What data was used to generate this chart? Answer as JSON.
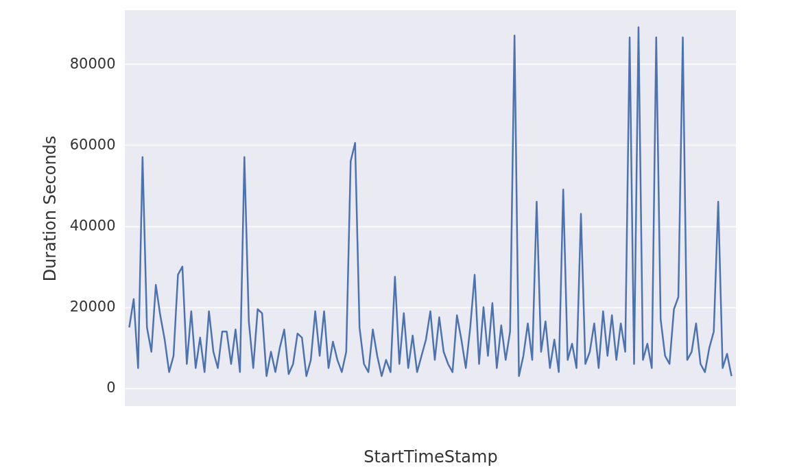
{
  "chart_data": {
    "type": "line",
    "xlabel": "StartTimeStamp",
    "ylabel": "Duration Seconds",
    "categories": [
      null,
      null,
      null,
      null,
      null,
      null,
      null,
      null,
      null,
      null,
      null,
      null,
      null,
      null,
      null,
      null,
      null,
      null,
      null,
      null,
      null,
      null,
      null,
      null,
      null,
      null,
      null,
      null,
      null,
      null,
      null,
      null,
      null,
      null,
      null,
      null,
      null,
      null,
      null,
      null,
      null,
      null,
      null,
      null,
      null,
      null,
      null,
      null,
      null,
      null,
      null,
      null,
      null,
      null,
      null,
      null,
      null,
      null,
      null,
      null,
      null,
      null,
      null,
      null,
      null,
      null,
      null,
      null,
      null,
      null,
      null,
      null,
      null,
      null,
      null,
      null,
      null,
      null,
      null,
      null,
      null,
      null,
      null,
      null,
      null,
      null,
      null,
      null,
      null,
      null,
      null,
      null,
      null,
      null,
      null,
      null,
      null,
      null,
      null,
      null,
      null,
      null,
      null,
      null,
      null,
      null,
      null,
      null,
      null,
      null,
      null,
      null,
      null,
      null,
      null,
      null,
      null,
      null,
      null,
      null,
      null,
      null,
      null,
      null,
      null,
      null,
      null,
      null,
      null,
      null,
      null,
      null,
      null,
      null,
      null,
      null,
      null
    ],
    "series": [
      {
        "color": "#4c72b0",
        "values": [
          15000,
          22000,
          5000,
          57000,
          15000,
          9000,
          25500,
          18000,
          12000,
          4000,
          8000,
          28000,
          30000,
          6000,
          19000,
          5000,
          12500,
          4000,
          19000,
          9000,
          5000,
          14000,
          14000,
          6000,
          14500,
          4000,
          57000,
          16500,
          5000,
          19500,
          18500,
          3000,
          9000,
          4000,
          10000,
          14500,
          3500,
          6000,
          13500,
          12500,
          3000,
          7000,
          19000,
          8000,
          19000,
          5000,
          11500,
          7000,
          4000,
          9000,
          56000,
          60500,
          15000,
          6000,
          4000,
          14500,
          8000,
          3000,
          7000,
          4000,
          27500,
          6000,
          18500,
          5000,
          13000,
          4000,
          8000,
          12000,
          19000,
          7000,
          17500,
          9000,
          6000,
          4000,
          18000,
          12000,
          5000,
          15000,
          28000,
          6000,
          20000,
          8000,
          21000,
          5000,
          15500,
          7000,
          14000,
          87000,
          3000,
          8000,
          16000,
          7000,
          46000,
          9000,
          16500,
          5000,
          12000,
          4000,
          49000,
          7000,
          11000,
          5000,
          43000,
          6000,
          9000,
          16000,
          5000,
          19000,
          8000,
          18000,
          7000,
          16000,
          9000,
          86500,
          6000,
          89000,
          7000,
          11000,
          5000,
          86500,
          17000,
          8000,
          6000,
          19500,
          22500,
          86500,
          7000,
          9000,
          16000,
          6000,
          4000,
          10000,
          14000,
          46000,
          5000,
          8500,
          3000
        ]
      }
    ],
    "ylim": [
      -4400,
      93200
    ],
    "yticks": [
      0,
      20000,
      40000,
      60000,
      80000
    ],
    "grid": "y",
    "tick_labels": "y",
    "marker": "none",
    "line_style": "solid"
  }
}
